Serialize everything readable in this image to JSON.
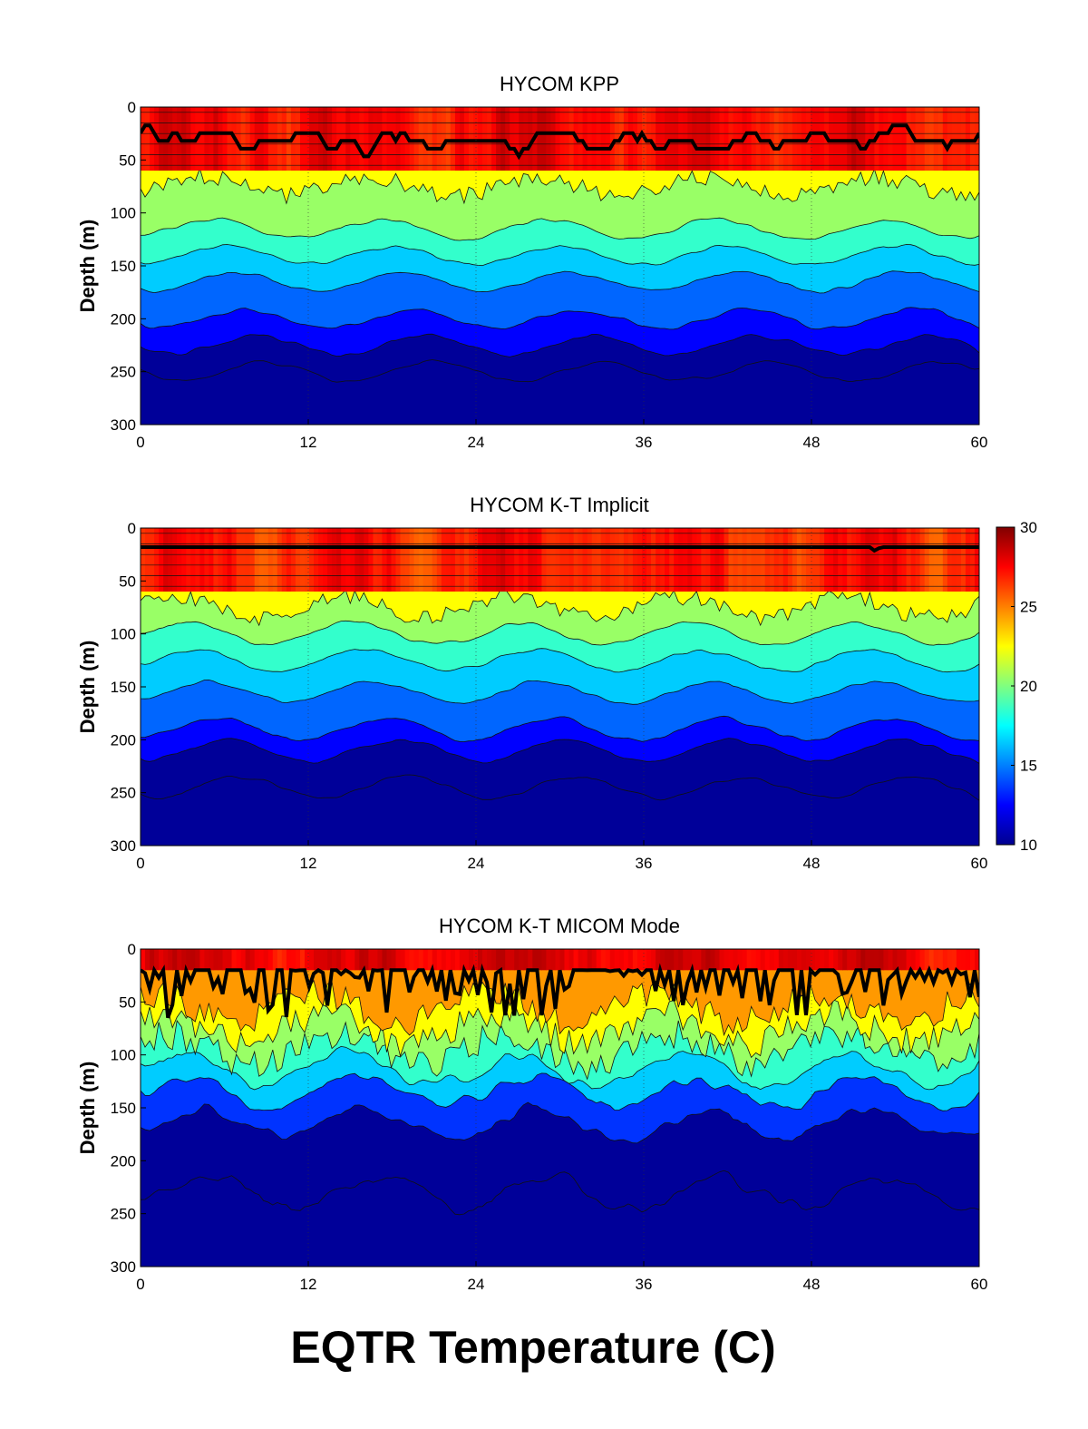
{
  "figure_title": "EQTR Temperature (C)",
  "chart_data": [
    {
      "type": "heatmap",
      "title": "HYCOM KPP",
      "xlabel": "",
      "ylabel": "Depth (m)",
      "xlim": [
        0,
        60
      ],
      "ylim": [
        300,
        0
      ],
      "x_ticks": [
        "0",
        "12",
        "24",
        "36",
        "48",
        "60"
      ],
      "y_ticks": [
        "0",
        "50",
        "100",
        "150",
        "200",
        "250",
        "300"
      ],
      "mixed_layer_depth_range_m": [
        10,
        65
      ],
      "isotherm_depths_m": [
        {
          "temp_c": 24,
          "depth_m": 75
        },
        {
          "temp_c": 22,
          "depth_m": 115
        },
        {
          "temp_c": 20,
          "depth_m": 140
        },
        {
          "temp_c": 18,
          "depth_m": 165
        },
        {
          "temp_c": 16,
          "depth_m": 200
        },
        {
          "temp_c": 14,
          "depth_m": 225
        },
        {
          "temp_c": 12,
          "depth_m": 250
        }
      ],
      "surface_temp_c": 27.5
    },
    {
      "type": "heatmap",
      "title": "HYCOM K-T Implicit",
      "xlabel": "",
      "ylabel": "Depth (m)",
      "xlim": [
        0,
        60
      ],
      "ylim": [
        300,
        0
      ],
      "x_ticks": [
        "0",
        "12",
        "24",
        "36",
        "48",
        "60"
      ],
      "y_ticks": [
        "0",
        "50",
        "100",
        "150",
        "200",
        "250",
        "300"
      ],
      "mixed_layer_depth_range_m": [
        18,
        45
      ],
      "isotherm_depths_m": [
        {
          "temp_c": 24,
          "depth_m": 75
        },
        {
          "temp_c": 22,
          "depth_m": 100
        },
        {
          "temp_c": 20,
          "depth_m": 125
        },
        {
          "temp_c": 18,
          "depth_m": 155
        },
        {
          "temp_c": 16,
          "depth_m": 190
        },
        {
          "temp_c": 14,
          "depth_m": 210
        },
        {
          "temp_c": 12,
          "depth_m": 245
        }
      ],
      "surface_temp_c": 27.0,
      "colorbar": {
        "min": 10,
        "max": 30,
        "ticks": [
          "10",
          "15",
          "20",
          "25",
          "30"
        ]
      }
    },
    {
      "type": "heatmap",
      "title": "HYCOM K-T MICOM Mode",
      "xlabel": "",
      "ylabel": "Depth (m)",
      "xlim": [
        0,
        60
      ],
      "ylim": [
        300,
        0
      ],
      "x_ticks": [
        "0",
        "12",
        "24",
        "36",
        "48",
        "60"
      ],
      "y_ticks": [
        "0",
        "50",
        "100",
        "150",
        "200",
        "250",
        "300"
      ],
      "mixed_layer_depth_range_m": [
        20,
        65
      ],
      "isotherm_depths_m": [
        {
          "temp_c": 26,
          "depth_m": 55
        },
        {
          "temp_c": 24,
          "depth_m": 75
        },
        {
          "temp_c": 22,
          "depth_m": 95
        },
        {
          "temp_c": 20,
          "depth_m": 115
        },
        {
          "temp_c": 18,
          "depth_m": 135
        },
        {
          "temp_c": 15,
          "depth_m": 165
        },
        {
          "temp_c": 12,
          "depth_m": 230
        }
      ],
      "surface_temp_c": 28.0
    }
  ]
}
